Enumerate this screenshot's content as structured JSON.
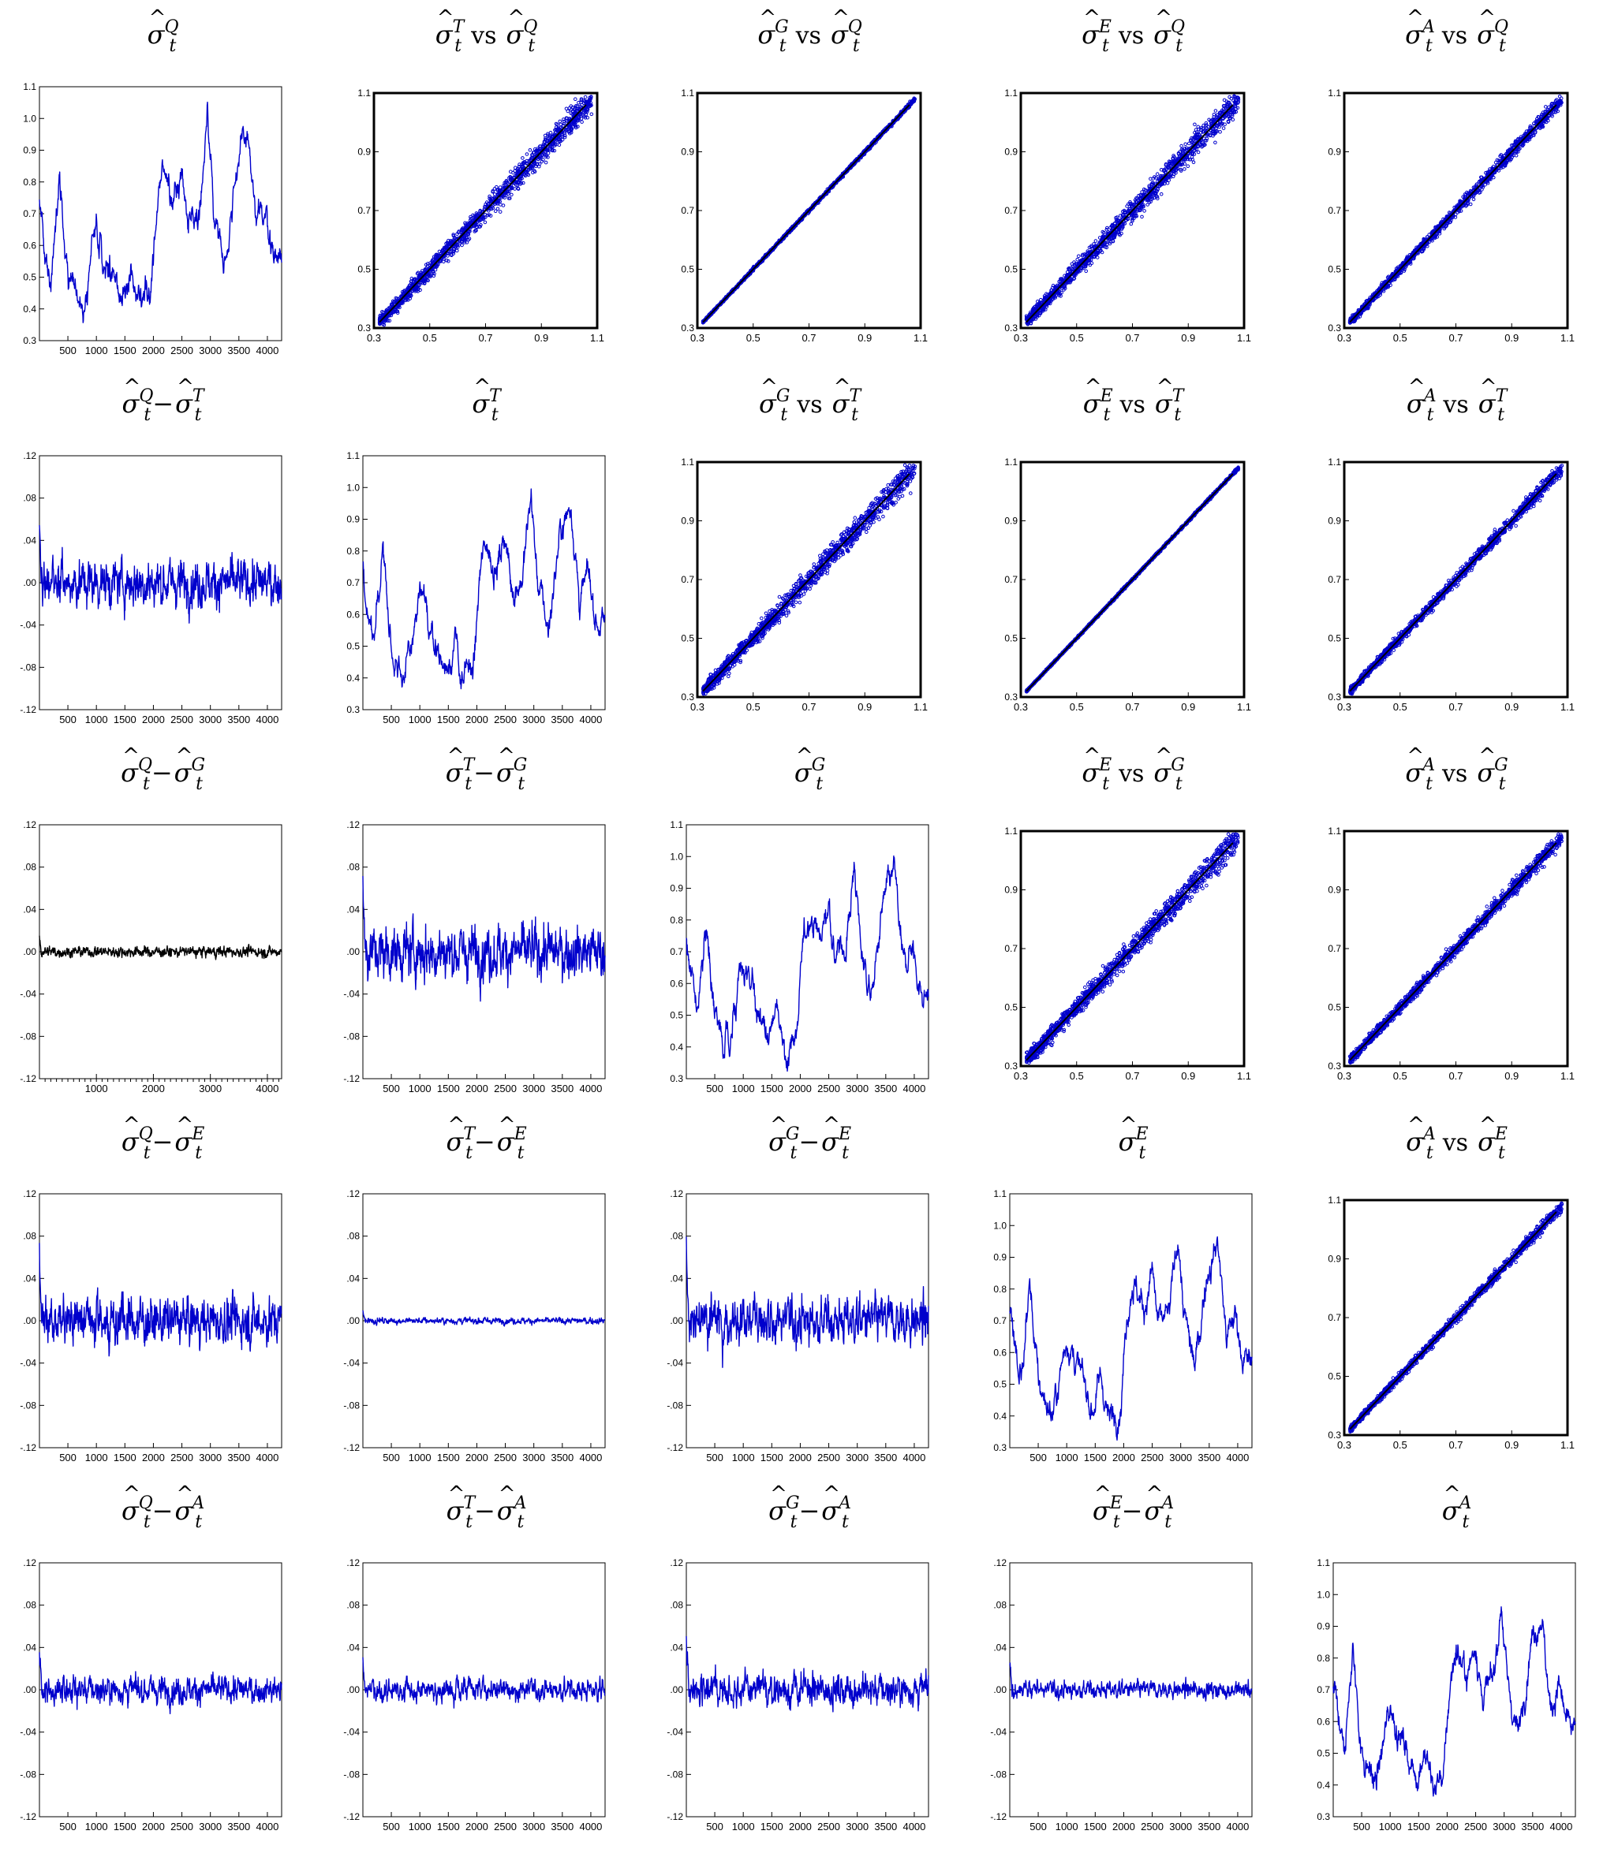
{
  "figure": {
    "series_color": "#0000cc",
    "diff_black_color": "#000000",
    "estimators": [
      "Q",
      "T",
      "G",
      "E",
      "A"
    ]
  },
  "chart_data": [
    {
      "row": 0,
      "col": 0,
      "type": "line",
      "title": {
        "a": "Q"
      },
      "x_ticks": [
        "500",
        "1000",
        "1500",
        "2000",
        "2500",
        "3000",
        "3500",
        "4000"
      ],
      "y_ticks": [
        "0.3",
        "0.4",
        "0.5",
        "0.6",
        "0.7",
        "0.8",
        "0.9",
        "1.0",
        "1.1"
      ],
      "ylim": [
        0.3,
        1.1
      ],
      "xlim": [
        1,
        4250
      ]
    },
    {
      "row": 0,
      "col": 1,
      "type": "scatter",
      "title": {
        "a": "T",
        "b": "Q",
        "rel": "vs"
      },
      "x_ticks": [
        "0.3",
        "0.5",
        "0.7",
        "0.9",
        "1.1"
      ],
      "y_ticks": [
        "0.3",
        "0.5",
        "0.7",
        "0.9",
        "1.1"
      ],
      "xlim": [
        0.3,
        1.1
      ],
      "ylim": [
        0.3,
        1.1
      ],
      "spread": 0.04
    },
    {
      "row": 0,
      "col": 2,
      "type": "scatter",
      "title": {
        "a": "G",
        "b": "Q",
        "rel": "vs"
      },
      "x_ticks": [
        "0.3",
        "0.5",
        "0.7",
        "0.9",
        "1.1"
      ],
      "y_ticks": [
        "0.3",
        "0.5",
        "0.7",
        "0.9",
        "1.1"
      ],
      "xlim": [
        0.3,
        1.1
      ],
      "ylim": [
        0.3,
        1.1
      ],
      "spread": 0.006
    },
    {
      "row": 0,
      "col": 3,
      "type": "scatter",
      "title": {
        "a": "E",
        "b": "Q",
        "rel": "vs"
      },
      "x_ticks": [
        "0.3",
        "0.5",
        "0.7",
        "0.9",
        "1.1"
      ],
      "y_ticks": [
        "0.3",
        "0.5",
        "0.7",
        "0.9",
        "1.1"
      ],
      "xlim": [
        0.3,
        1.1
      ],
      "ylim": [
        0.3,
        1.1
      ],
      "spread": 0.04
    },
    {
      "row": 0,
      "col": 4,
      "type": "scatter",
      "title": {
        "a": "A",
        "b": "Q",
        "rel": "vs"
      },
      "x_ticks": [
        "0.3",
        "0.5",
        "0.7",
        "0.9",
        "1.1"
      ],
      "y_ticks": [
        "0.3",
        "0.5",
        "0.7",
        "0.9",
        "1.1"
      ],
      "xlim": [
        0.3,
        1.1
      ],
      "ylim": [
        0.3,
        1.1
      ],
      "spread": 0.022
    },
    {
      "row": 1,
      "col": 0,
      "type": "line",
      "title": {
        "a": "Q",
        "b": "T",
        "rel": "−"
      },
      "x_ticks": [
        "500",
        "1000",
        "1500",
        "2000",
        "2500",
        "3000",
        "3500",
        "4000"
      ],
      "y_ticks": [
        "-.12",
        "-.08",
        "-.04",
        ".00",
        ".04",
        ".08",
        ".12"
      ],
      "ylim": [
        -0.12,
        0.12
      ],
      "xlim": [
        1,
        4250
      ],
      "amp": 0.022
    },
    {
      "row": 1,
      "col": 1,
      "type": "line",
      "title": {
        "a": "T"
      },
      "x_ticks": [
        "500",
        "1000",
        "1500",
        "2000",
        "2500",
        "3000",
        "3500",
        "4000"
      ],
      "y_ticks": [
        "0.3",
        "0.4",
        "0.5",
        "0.6",
        "0.7",
        "0.8",
        "0.9",
        "1.0",
        "1.1"
      ],
      "ylim": [
        0.3,
        1.1
      ],
      "xlim": [
        1,
        4250
      ]
    },
    {
      "row": 1,
      "col": 2,
      "type": "scatter",
      "title": {
        "a": "G",
        "b": "T",
        "rel": "vs"
      },
      "x_ticks": [
        "0.3",
        "0.5",
        "0.7",
        "0.9",
        "1.1"
      ],
      "y_ticks": [
        "0.3",
        "0.5",
        "0.7",
        "0.9",
        "1.1"
      ],
      "xlim": [
        0.3,
        1.1
      ],
      "ylim": [
        0.3,
        1.1
      ],
      "spread": 0.04
    },
    {
      "row": 1,
      "col": 3,
      "type": "scatter",
      "title": {
        "a": "E",
        "b": "T",
        "rel": "vs"
      },
      "x_ticks": [
        "0.3",
        "0.5",
        "0.7",
        "0.9",
        "1.1"
      ],
      "y_ticks": [
        "0.3",
        "0.5",
        "0.7",
        "0.9",
        "1.1"
      ],
      "xlim": [
        0.3,
        1.1
      ],
      "ylim": [
        0.3,
        1.1
      ],
      "spread": 0.004
    },
    {
      "row": 1,
      "col": 4,
      "type": "scatter",
      "title": {
        "a": "A",
        "b": "T",
        "rel": "vs"
      },
      "x_ticks": [
        "0.3",
        "0.5",
        "0.7",
        "0.9",
        "1.1"
      ],
      "y_ticks": [
        "0.3",
        "0.5",
        "0.7",
        "0.9",
        "1.1"
      ],
      "xlim": [
        0.3,
        1.1
      ],
      "ylim": [
        0.3,
        1.1
      ],
      "spread": 0.022
    },
    {
      "row": 2,
      "col": 0,
      "type": "line",
      "title": {
        "a": "Q",
        "b": "G",
        "rel": "−"
      },
      "x_ticks": [
        "1000",
        "2000",
        "3000",
        "4000"
      ],
      "y_ticks": [
        "-.12",
        "-.08",
        "-.04",
        ".00",
        ".04",
        ".08",
        ".12"
      ],
      "ylim": [
        -0.12,
        0.12
      ],
      "xlim": [
        1,
        4250
      ],
      "amp": 0.005,
      "black": true
    },
    {
      "row": 2,
      "col": 1,
      "type": "line",
      "title": {
        "a": "T",
        "b": "G",
        "rel": "−"
      },
      "x_ticks": [
        "500",
        "1000",
        "1500",
        "2000",
        "2500",
        "3000",
        "3500",
        "4000"
      ],
      "y_ticks": [
        "-.12",
        "-.08",
        "-.04",
        ".00",
        ".04",
        ".08",
        ".12"
      ],
      "ylim": [
        -0.12,
        0.12
      ],
      "xlim": [
        1,
        4250
      ],
      "amp": 0.025
    },
    {
      "row": 2,
      "col": 2,
      "type": "line",
      "title": {
        "a": "G"
      },
      "x_ticks": [
        "500",
        "1000",
        "1500",
        "2000",
        "2500",
        "3000",
        "3500",
        "4000"
      ],
      "y_ticks": [
        "0.3",
        "0.4",
        "0.5",
        "0.6",
        "0.7",
        "0.8",
        "0.9",
        "1.0",
        "1.1"
      ],
      "ylim": [
        0.3,
        1.1
      ],
      "xlim": [
        1,
        4250
      ]
    },
    {
      "row": 2,
      "col": 3,
      "type": "scatter",
      "title": {
        "a": "E",
        "b": "G",
        "rel": "vs"
      },
      "x_ticks": [
        "0.3",
        "0.5",
        "0.7",
        "0.9",
        "1.1"
      ],
      "y_ticks": [
        "0.3",
        "0.5",
        "0.7",
        "0.9",
        "1.1"
      ],
      "xlim": [
        0.3,
        1.1
      ],
      "ylim": [
        0.3,
        1.1
      ],
      "spread": 0.04
    },
    {
      "row": 2,
      "col": 4,
      "type": "scatter",
      "title": {
        "a": "A",
        "b": "G",
        "rel": "vs"
      },
      "x_ticks": [
        "0.3",
        "0.5",
        "0.7",
        "0.9",
        "1.1"
      ],
      "y_ticks": [
        "0.3",
        "0.5",
        "0.7",
        "0.9",
        "1.1"
      ],
      "xlim": [
        0.3,
        1.1
      ],
      "ylim": [
        0.3,
        1.1
      ],
      "spread": 0.025
    },
    {
      "row": 3,
      "col": 0,
      "type": "line",
      "title": {
        "a": "Q",
        "b": "E",
        "rel": "−"
      },
      "x_ticks": [
        "500",
        "1000",
        "1500",
        "2000",
        "2500",
        "3000",
        "3500",
        "4000"
      ],
      "y_ticks": [
        "-.12",
        "-.08",
        "-.04",
        ".00",
        ".04",
        ".08",
        ".12"
      ],
      "ylim": [
        -0.12,
        0.12
      ],
      "xlim": [
        1,
        4250
      ],
      "amp": 0.022
    },
    {
      "row": 3,
      "col": 1,
      "type": "line",
      "title": {
        "a": "T",
        "b": "E",
        "rel": "−"
      },
      "x_ticks": [
        "500",
        "1000",
        "1500",
        "2000",
        "2500",
        "3000",
        "3500",
        "4000"
      ],
      "y_ticks": [
        "-.12",
        "-.08",
        "-.04",
        ".00",
        ".04",
        ".08",
        ".12"
      ],
      "ylim": [
        -0.12,
        0.12
      ],
      "xlim": [
        1,
        4250
      ],
      "amp": 0.003
    },
    {
      "row": 3,
      "col": 2,
      "type": "line",
      "title": {
        "a": "G",
        "b": "E",
        "rel": "−"
      },
      "x_ticks": [
        "500",
        "1000",
        "1500",
        "2000",
        "2500",
        "3000",
        "3500",
        "4000"
      ],
      "y_ticks": [
        "-.12",
        "-.08",
        "-.04",
        ".00",
        ".04",
        ".08",
        ".12"
      ],
      "ylim": [
        -0.12,
        0.12
      ],
      "xlim": [
        1,
        4250
      ],
      "amp": 0.022
    },
    {
      "row": 3,
      "col": 3,
      "type": "line",
      "title": {
        "a": "E"
      },
      "x_ticks": [
        "500",
        "1000",
        "1500",
        "2000",
        "2500",
        "3000",
        "3500",
        "4000"
      ],
      "y_ticks": [
        "0.3",
        "0.4",
        "0.5",
        "0.6",
        "0.7",
        "0.8",
        "0.9",
        "1.0",
        "1.1"
      ],
      "ylim": [
        0.3,
        1.1
      ],
      "xlim": [
        1,
        4250
      ]
    },
    {
      "row": 3,
      "col": 4,
      "type": "scatter",
      "title": {
        "a": "A",
        "b": "E",
        "rel": "vs"
      },
      "x_ticks": [
        "0.3",
        "0.5",
        "0.7",
        "0.9",
        "1.1"
      ],
      "y_ticks": [
        "0.3",
        "0.5",
        "0.7",
        "0.9",
        "1.1"
      ],
      "xlim": [
        0.3,
        1.1
      ],
      "ylim": [
        0.3,
        1.1
      ],
      "spread": 0.018
    },
    {
      "row": 4,
      "col": 0,
      "type": "line",
      "title": {
        "a": "Q",
        "b": "A",
        "rel": "−"
      },
      "x_ticks": [
        "500",
        "1000",
        "1500",
        "2000",
        "2500",
        "3000",
        "3500",
        "4000"
      ],
      "y_ticks": [
        "-.12",
        "-.08",
        "-.04",
        ".00",
        ".04",
        ".08",
        ".12"
      ],
      "ylim": [
        -0.12,
        0.12
      ],
      "xlim": [
        1,
        4250
      ],
      "amp": 0.013
    },
    {
      "row": 4,
      "col": 1,
      "type": "line",
      "title": {
        "a": "T",
        "b": "A",
        "rel": "−"
      },
      "x_ticks": [
        "500",
        "1000",
        "1500",
        "2000",
        "2500",
        "3000",
        "3500",
        "4000"
      ],
      "y_ticks": [
        "-.12",
        "-.08",
        "-.04",
        ".00",
        ".04",
        ".08",
        ".12"
      ],
      "ylim": [
        -0.12,
        0.12
      ],
      "xlim": [
        1,
        4250
      ],
      "amp": 0.01
    },
    {
      "row": 4,
      "col": 2,
      "type": "line",
      "title": {
        "a": "G",
        "b": "A",
        "rel": "−"
      },
      "x_ticks": [
        "500",
        "1000",
        "1500",
        "2000",
        "2500",
        "3000",
        "3500",
        "4000"
      ],
      "y_ticks": [
        "-.12",
        "-.08",
        "-.04",
        ".00",
        ".04",
        ".08",
        ".12"
      ],
      "ylim": [
        -0.12,
        0.12
      ],
      "xlim": [
        1,
        4250
      ],
      "amp": 0.015
    },
    {
      "row": 4,
      "col": 3,
      "type": "line",
      "title": {
        "a": "E",
        "b": "A",
        "rel": "−"
      },
      "x_ticks": [
        "500",
        "1000",
        "1500",
        "2000",
        "2500",
        "3000",
        "3500",
        "4000"
      ],
      "y_ticks": [
        "-.12",
        "-.08",
        "-.04",
        ".00",
        ".04",
        ".08",
        ".12"
      ],
      "ylim": [
        -0.12,
        0.12
      ],
      "xlim": [
        1,
        4250
      ],
      "amp": 0.008
    },
    {
      "row": 4,
      "col": 4,
      "type": "line",
      "title": {
        "a": "A"
      },
      "x_ticks": [
        "500",
        "1000",
        "1500",
        "2000",
        "2500",
        "3000",
        "3500",
        "4000"
      ],
      "y_ticks": [
        "0.3",
        "0.4",
        "0.5",
        "0.6",
        "0.7",
        "0.8",
        "0.9",
        "1.0",
        "1.1"
      ],
      "ylim": [
        0.3,
        1.1
      ],
      "xlim": [
        1,
        4250
      ]
    }
  ]
}
